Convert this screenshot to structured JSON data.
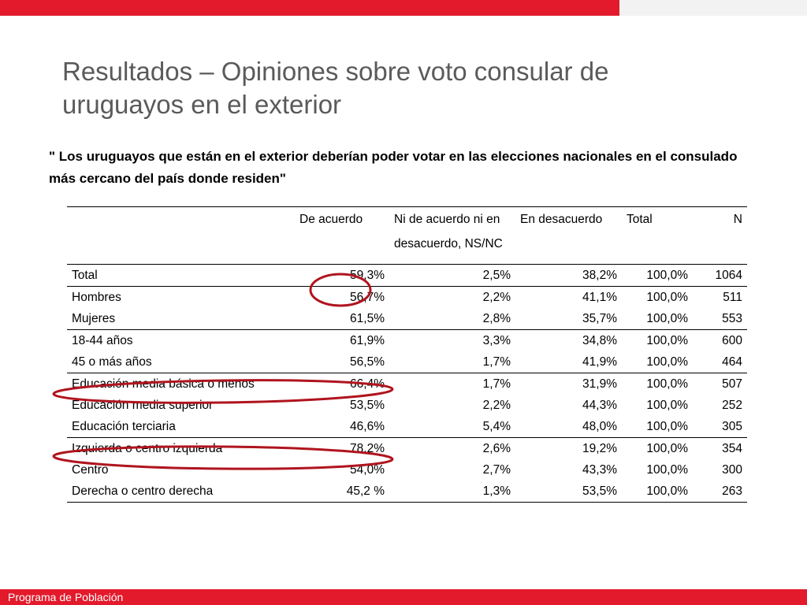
{
  "slide": {
    "title": "Resultados – Opiniones sobre voto consular de uruguayos en el exterior",
    "quote": "\" Los uruguayos que están en el exterior deberían poder votar en las elecciones nacionales en el consulado más cercano del país donde residen\"",
    "footer": "Programa de Población"
  },
  "table": {
    "headers": [
      "",
      "De acuerdo",
      "Ni de acuerdo ni en desacuerdo, NS/NC",
      "En desacuerdo",
      "Total",
      "N"
    ],
    "rows": [
      {
        "label": "Total",
        "values": [
          "59,3%",
          "2,5%",
          "38,2%",
          "100,0%",
          "1064"
        ]
      },
      {
        "label": "Hombres",
        "values": [
          "56,7%",
          "2,2%",
          "41,1%",
          "100,0%",
          "511"
        ]
      },
      {
        "label": "Mujeres",
        "values": [
          "61,5%",
          "2,8%",
          "35,7%",
          "100,0%",
          "553"
        ]
      },
      {
        "label": "18-44 años",
        "values": [
          "61,9%",
          "3,3%",
          "34,8%",
          "100,0%",
          "600"
        ]
      },
      {
        "label": "45 o más años",
        "values": [
          "56,5%",
          "1,7%",
          "41,9%",
          "100,0%",
          "464"
        ]
      },
      {
        "label": "Educación media básica o menos",
        "values": [
          "66,4%",
          "1,7%",
          "31,9%",
          "100,0%",
          "507"
        ]
      },
      {
        "label": "Educación media superior",
        "values": [
          "53,5%",
          "2,2%",
          "44,3%",
          "100,0%",
          "252"
        ]
      },
      {
        "label": "Educación terciaria",
        "values": [
          "46,6%",
          "5,4%",
          "48,0%",
          "100,0%",
          "305"
        ]
      },
      {
        "label": "Izquierda o centro izquierda",
        "values": [
          "78,2%",
          "2,6%",
          "19,2%",
          "100,0%",
          "354"
        ]
      },
      {
        "label": "Centro",
        "values": [
          "54,0%",
          "2,7%",
          "43,3%",
          "100,0%",
          "300"
        ]
      },
      {
        "label": "Derecha o centro derecha",
        "values": [
          "45,2 %",
          "1,3%",
          "53,5%",
          "100,0%",
          "263"
        ]
      }
    ]
  },
  "colors": {
    "accent_red": "#e21a2c",
    "annotation_red": "#b0141e",
    "title_gray": "#5a5a5a"
  }
}
